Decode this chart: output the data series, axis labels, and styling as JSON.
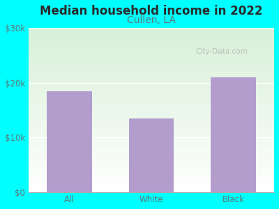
{
  "title": "Median household income in 2022",
  "subtitle": "Cullen, LA",
  "categories": [
    "All",
    "White",
    "Black"
  ],
  "values": [
    18500,
    13500,
    21000
  ],
  "bar_color": "#b39dcc",
  "background_color": "#00FFFF",
  "plot_bg_left": "#d4ecd4",
  "plot_bg_right": "#f0faf0",
  "plot_bg_top": "#d8f0d8",
  "plot_bg_bottom": "#ffffff",
  "title_color": "#2a2a2a",
  "subtitle_color": "#5a7a7a",
  "tick_label_color": "#5a7a7a",
  "ylim": [
    0,
    30000
  ],
  "yticks": [
    0,
    10000,
    20000,
    30000
  ],
  "ytick_labels": [
    "$0",
    "$10k",
    "$20k",
    "$30k"
  ],
  "title_fontsize": 12,
  "subtitle_fontsize": 10,
  "tick_fontsize": 8.5,
  "watermark_text": "City-Data.com",
  "figsize": [
    4.0,
    3.0
  ],
  "dpi": 100
}
